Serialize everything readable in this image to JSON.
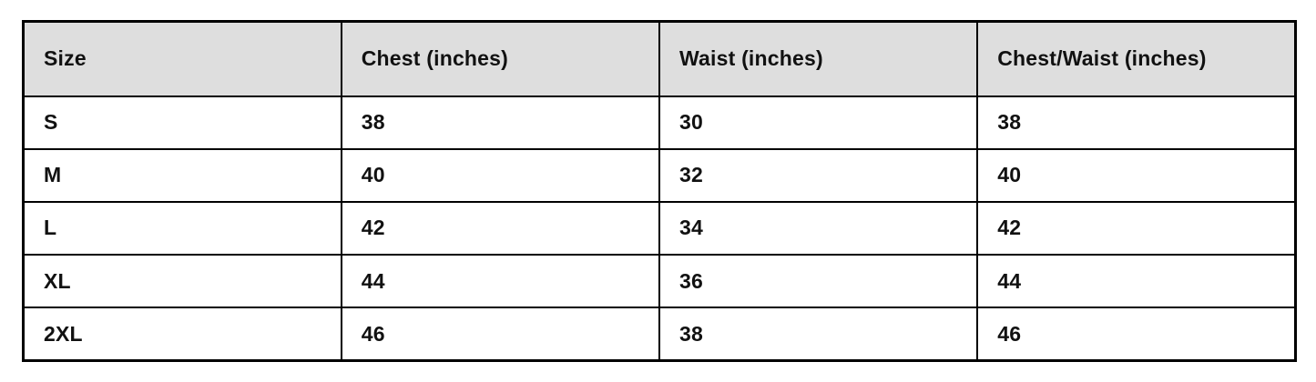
{
  "theme": {
    "page_bg": "#ffffff",
    "header_bg": "#dedede",
    "border_color": "#000000",
    "text_color": "#111111"
  },
  "table": {
    "name": "size-chart",
    "columns": [
      "Size",
      "Chest (inches)",
      "Waist (inches)",
      "Chest/Waist (inches)"
    ],
    "rows": [
      [
        "S",
        "38",
        "30",
        "38"
      ],
      [
        "M",
        "40",
        "32",
        "40"
      ],
      [
        "L",
        "42",
        "34",
        "42"
      ],
      [
        "XL",
        "44",
        "36",
        "44"
      ],
      [
        "2XL",
        "46",
        "38",
        "46"
      ]
    ]
  }
}
